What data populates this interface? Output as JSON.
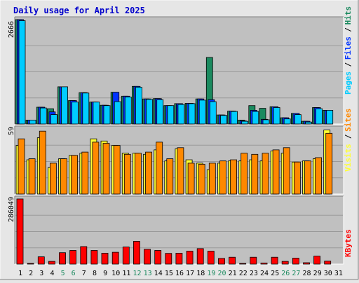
{
  "chart_data": [
    {
      "type": "bar",
      "panel": "hits-files-pages",
      "title": "Daily usage for April 2025",
      "ylabel_max": "2666",
      "legend": [
        {
          "label": "Pages",
          "color": "#00ccff"
        },
        {
          "label": "Files",
          "color": "#0033ff"
        },
        {
          "label": "Hits",
          "color": "#1b8a5f"
        }
      ],
      "legend_separators": [
        "/",
        "/"
      ],
      "ylim": [
        0,
        2666
      ],
      "categories": [
        "1",
        "2",
        "3",
        "4",
        "5",
        "6",
        "7",
        "8",
        "9",
        "10",
        "11",
        "12",
        "13",
        "14",
        "15",
        "16",
        "17",
        "18",
        "19",
        "20",
        "21",
        "22",
        "23",
        "24",
        "25",
        "26",
        "27",
        "28",
        "29",
        "30",
        "31"
      ],
      "series": [
        {
          "name": "Hits",
          "color": "#1b8a5f",
          "values": [
            2666,
            100,
            430,
            390,
            950,
            600,
            800,
            560,
            480,
            810,
            710,
            960,
            640,
            650,
            470,
            520,
            530,
            640,
            1700,
            230,
            330,
            100,
            470,
            400,
            440,
            160,
            270,
            70,
            420,
            350,
            0
          ]
        },
        {
          "name": "Files",
          "color": "#0033ff",
          "values": [
            2666,
            100,
            430,
            310,
            950,
            600,
            800,
            560,
            480,
            810,
            710,
            960,
            640,
            650,
            470,
            520,
            530,
            640,
            620,
            230,
            330,
            80,
            350,
            120,
            440,
            160,
            270,
            70,
            420,
            350,
            0
          ]
        },
        {
          "name": "Pages",
          "color": "#00ccff",
          "values": [
            2640,
            100,
            410,
            240,
            950,
            560,
            790,
            560,
            470,
            570,
            690,
            940,
            630,
            620,
            470,
            500,
            520,
            610,
            570,
            220,
            320,
            70,
            320,
            110,
            420,
            130,
            240,
            50,
            390,
            350,
            0
          ]
        }
      ]
    },
    {
      "type": "bar",
      "panel": "visits-sites",
      "ylabel_max": "59",
      "legend": [
        {
          "label": "Visits",
          "color": "#ffff33"
        },
        {
          "label": "Sites",
          "color": "#ff8800"
        }
      ],
      "legend_separators": [
        "/"
      ],
      "ylim": [
        0,
        59
      ],
      "categories": [
        "1",
        "2",
        "3",
        "4",
        "5",
        "6",
        "7",
        "8",
        "9",
        "10",
        "11",
        "12",
        "13",
        "14",
        "15",
        "16",
        "17",
        "18",
        "19",
        "20",
        "21",
        "22",
        "23",
        "24",
        "25",
        "26",
        "27",
        "28",
        "29",
        "30",
        "31"
      ],
      "series": [
        {
          "name": "Visits",
          "color": "#ffff33",
          "values": [
            44,
            31,
            51,
            24,
            32,
            35,
            37,
            50,
            48,
            44,
            37,
            37,
            36,
            40,
            30,
            41,
            31,
            28,
            22,
            28,
            30,
            30,
            31,
            30,
            39,
            37,
            29,
            30,
            32,
            58,
            0
          ]
        },
        {
          "name": "Sites",
          "color": "#ff8800",
          "values": [
            50,
            32,
            57,
            28,
            32,
            35,
            38,
            47,
            46,
            44,
            36,
            37,
            38,
            47,
            32,
            42,
            28,
            27,
            28,
            30,
            31,
            37,
            36,
            37,
            40,
            42,
            29,
            30,
            33,
            55,
            0
          ]
        }
      ]
    },
    {
      "type": "bar",
      "panel": "kbytes",
      "ylabel_max": "286049",
      "legend": [
        {
          "label": "KBytes",
          "color": "#ff0000"
        }
      ],
      "legend_separators": [],
      "ylim": [
        0,
        286049
      ],
      "categories": [
        "1",
        "2",
        "3",
        "4",
        "5",
        "6",
        "7",
        "8",
        "9",
        "10",
        "11",
        "12",
        "13",
        "14",
        "15",
        "16",
        "17",
        "18",
        "19",
        "20",
        "21",
        "22",
        "23",
        "24",
        "25",
        "26",
        "27",
        "28",
        "29",
        "30",
        "31"
      ],
      "series": [
        {
          "name": "KBytes",
          "color": "#ff0000",
          "values": [
            286049,
            2000,
            32000,
            12000,
            50000,
            60000,
            77000,
            60000,
            48000,
            52000,
            75000,
            100000,
            65000,
            60000,
            47000,
            48000,
            57000,
            68000,
            57000,
            25000,
            30000,
            3000,
            30000,
            5000,
            30000,
            12000,
            26000,
            6000,
            35000,
            13000,
            0
          ]
        }
      ]
    }
  ],
  "weekend_days": [
    "5",
    "6",
    "12",
    "13",
    "19",
    "20",
    "26",
    "27"
  ],
  "colors": {
    "background": "#e6e6e6",
    "plot_background": "#c0c0c0",
    "title": "#0000cc",
    "day_label_weekday": "#000000",
    "day_label_weekend": "#1b8a5f",
    "bar_outline": "#000000"
  }
}
